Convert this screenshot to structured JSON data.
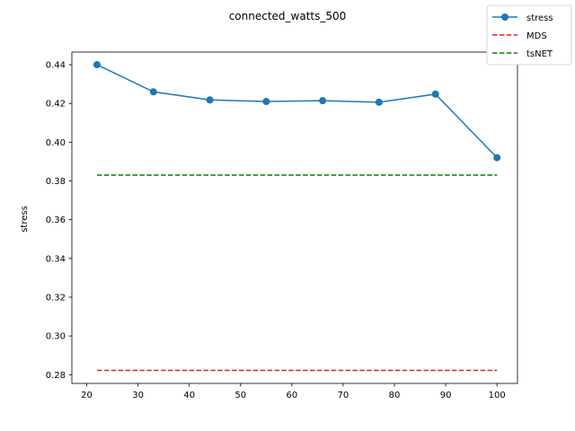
{
  "chart_data": {
    "type": "line",
    "title": "connected_watts_500",
    "xlabel": "",
    "ylabel": "stress",
    "xlim": [
      17.1,
      104.0
    ],
    "ylim": [
      0.2755,
      0.4465
    ],
    "xticks": [
      20,
      30,
      40,
      50,
      60,
      70,
      80,
      90,
      100
    ],
    "yticks": [
      0.28,
      0.3,
      0.32,
      0.34,
      0.36,
      0.38,
      0.4,
      0.42,
      0.44
    ],
    "ytick_labels": [
      "0.28",
      "0.30",
      "0.32",
      "0.34",
      "0.36",
      "0.38",
      "0.40",
      "0.42",
      "0.44"
    ],
    "grid": false,
    "legend_position": "top-right",
    "series": [
      {
        "name": "stress",
        "style": "solid-marker",
        "color": "#1f77b4",
        "x": [
          22,
          33,
          44,
          55,
          66,
          77,
          88,
          100
        ],
        "y": [
          0.44,
          0.426,
          0.4218,
          0.421,
          0.4214,
          0.4206,
          0.4248,
          0.392
        ]
      },
      {
        "name": "MDS",
        "style": "dashed",
        "color": "#d62728",
        "x": [
          22,
          100
        ],
        "y": [
          0.2822,
          0.2822
        ]
      },
      {
        "name": "tsNET",
        "style": "dashed",
        "color": "#008000",
        "x": [
          22,
          100
        ],
        "y": [
          0.383,
          0.383
        ]
      }
    ]
  }
}
